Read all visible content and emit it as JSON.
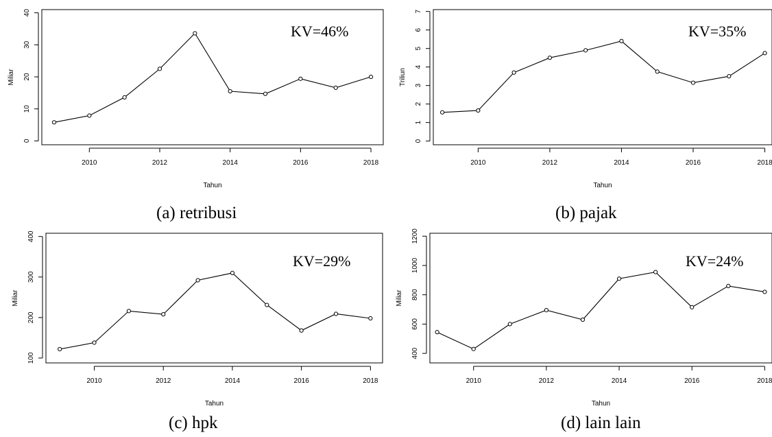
{
  "chart_data": [
    {
      "type": "line",
      "caption": "(a) retribusi",
      "annotation": "KV=46%",
      "xlabel": "Tahun",
      "ylabel": "Miliar",
      "x": [
        2009,
        2010,
        2011,
        2012,
        2013,
        2014,
        2015,
        2016,
        2017,
        2018
      ],
      "values": [
        5.8,
        7.9,
        13.6,
        22.5,
        33.6,
        15.5,
        14.7,
        19.4,
        16.6,
        20.0
      ],
      "xticks": [
        2010,
        2012,
        2014,
        2016,
        2018
      ],
      "yticks": [
        0,
        10,
        20,
        30,
        40
      ],
      "xlim": [
        2008.65,
        2018.35
      ],
      "ylim": [
        -1.2,
        41
      ],
      "grid": false
    },
    {
      "type": "line",
      "caption": "(b) pajak",
      "annotation": "KV=35%",
      "xlabel": "Tahun",
      "ylabel": "Triliun",
      "x": [
        2009,
        2010,
        2011,
        2012,
        2013,
        2014,
        2015,
        2016,
        2017,
        2018
      ],
      "values": [
        1.55,
        1.65,
        3.7,
        4.5,
        4.9,
        5.4,
        3.75,
        3.15,
        3.5,
        4.75
      ],
      "xticks": [
        2010,
        2012,
        2014,
        2016,
        2018
      ],
      "yticks": [
        0,
        1,
        2,
        3,
        4,
        5,
        6,
        7
      ],
      "xlim": [
        2008.75,
        2018.2
      ],
      "ylim": [
        -0.2,
        7.1
      ],
      "grid": false
    },
    {
      "type": "line",
      "caption": "(c) hpk",
      "annotation": "KV=29%",
      "xlabel": "Tahun",
      "ylabel": "Miliar",
      "x": [
        2009,
        2010,
        2011,
        2012,
        2013,
        2014,
        2015,
        2016,
        2017,
        2018
      ],
      "values": [
        122,
        138,
        216,
        208,
        292,
        310,
        231,
        168,
        209,
        198
      ],
      "xticks": [
        2010,
        2012,
        2014,
        2016,
        2018
      ],
      "yticks": [
        100,
        200,
        300,
        400
      ],
      "xlim": [
        2008.6,
        2018.35
      ],
      "ylim": [
        88,
        408
      ],
      "grid": false
    },
    {
      "type": "line",
      "caption": "(d) lain lain",
      "annotation": "KV=24%",
      "xlabel": "Tahun",
      "ylabel": "Miliar",
      "x": [
        2009,
        2010,
        2011,
        2012,
        2013,
        2014,
        2015,
        2016,
        2017,
        2018
      ],
      "values": [
        545,
        430,
        600,
        695,
        630,
        910,
        955,
        715,
        860,
        820
      ],
      "xticks": [
        2010,
        2012,
        2014,
        2016,
        2018
      ],
      "yticks": [
        400,
        600,
        800,
        1000,
        1200
      ],
      "xlim": [
        2008.8,
        2018.2
      ],
      "ylim": [
        335,
        1220
      ],
      "grid": false
    }
  ]
}
